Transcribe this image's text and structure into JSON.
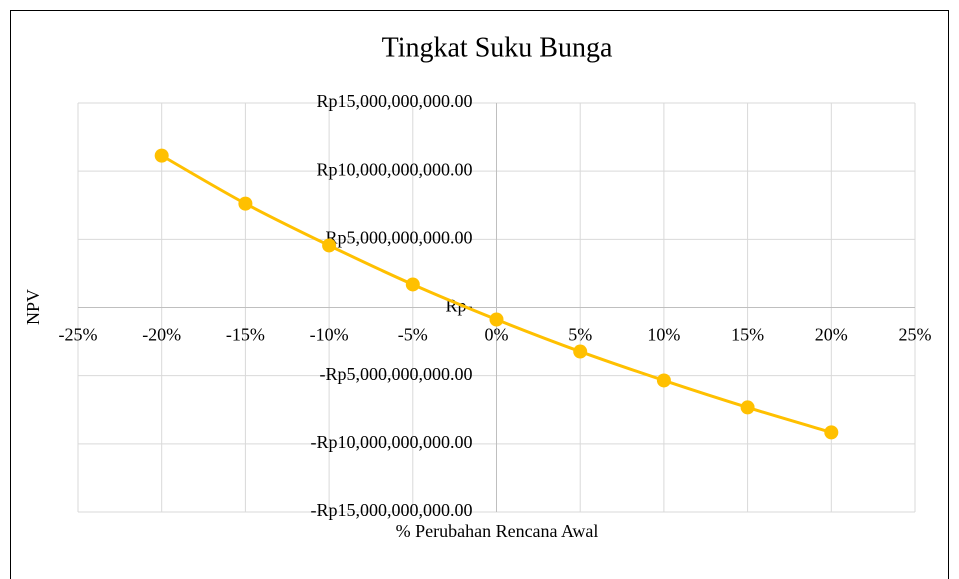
{
  "chart_data": {
    "type": "scatter",
    "title": "Tingkat Suku Bunga",
    "x_label": "% Perubahan Rencana Awal",
    "y_label": "NPV",
    "x": [
      -20,
      -15,
      -10,
      -5,
      0,
      5,
      10,
      15,
      20
    ],
    "series": [
      {
        "name": "NPV",
        "color": "#ffc000",
        "values": [
          11140000000,
          7620000000,
          4550000000,
          1690000000,
          -880000000,
          -3230000000,
          -5350000000,
          -7330000000,
          -9160000000
        ]
      }
    ],
    "xlim": [
      -25,
      25
    ],
    "xticks": [
      {
        "value": -25,
        "label": "-25%"
      },
      {
        "value": -20,
        "label": "-20%"
      },
      {
        "value": -15,
        "label": "-15%"
      },
      {
        "value": -10,
        "label": "-10%"
      },
      {
        "value": -5,
        "label": "-5%"
      },
      {
        "value": 0,
        "label": "0%"
      },
      {
        "value": 5,
        "label": "5%"
      },
      {
        "value": 10,
        "label": "10%"
      },
      {
        "value": 15,
        "label": "15%"
      },
      {
        "value": 20,
        "label": "20%"
      },
      {
        "value": 25,
        "label": "25%"
      }
    ],
    "ylim": [
      -15000000000,
      15000000000
    ],
    "yticks": [
      {
        "value": -15000000000,
        "label": "-Rp15,000,000,000.00"
      },
      {
        "value": -10000000000,
        "label": "-Rp10,000,000,000.00"
      },
      {
        "value": -5000000000,
        "label": "-Rp5,000,000,000.00"
      },
      {
        "value": 0,
        "label": "Rp-"
      },
      {
        "value": 5000000000,
        "label": "Rp5,000,000,000.00"
      },
      {
        "value": 10000000000,
        "label": "Rp10,000,000,000.00"
      },
      {
        "value": 15000000000,
        "label": "Rp15,000,000,000.00"
      }
    ],
    "grid": true,
    "smooth": true
  }
}
